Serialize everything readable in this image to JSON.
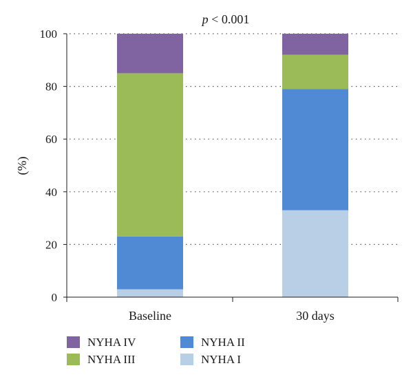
{
  "chart_data": {
    "type": "bar",
    "stacked": true,
    "title_italic": "p",
    "title_rest": " < 0.001",
    "ylabel": "(%)",
    "xlabel": "",
    "ylim": [
      0,
      100
    ],
    "yticks": [
      0,
      20,
      40,
      60,
      80,
      100
    ],
    "grid": true,
    "legend_position": "bottom",
    "categories": [
      "Baseline",
      "30 days"
    ],
    "series": [
      {
        "name": "NYHA I",
        "color": "#b8cfe6",
        "values": [
          3,
          33
        ]
      },
      {
        "name": "NYHA II",
        "color": "#5089d4",
        "values": [
          20,
          46
        ]
      },
      {
        "name": "NYHA III",
        "color": "#9bbb59",
        "values": [
          62,
          13
        ]
      },
      {
        "name": "NYHA IV",
        "color": "#8064a2",
        "values": [
          15,
          8
        ]
      }
    ],
    "legend_order": [
      "NYHA IV",
      "NYHA II",
      "NYHA III",
      "NYHA I"
    ]
  }
}
